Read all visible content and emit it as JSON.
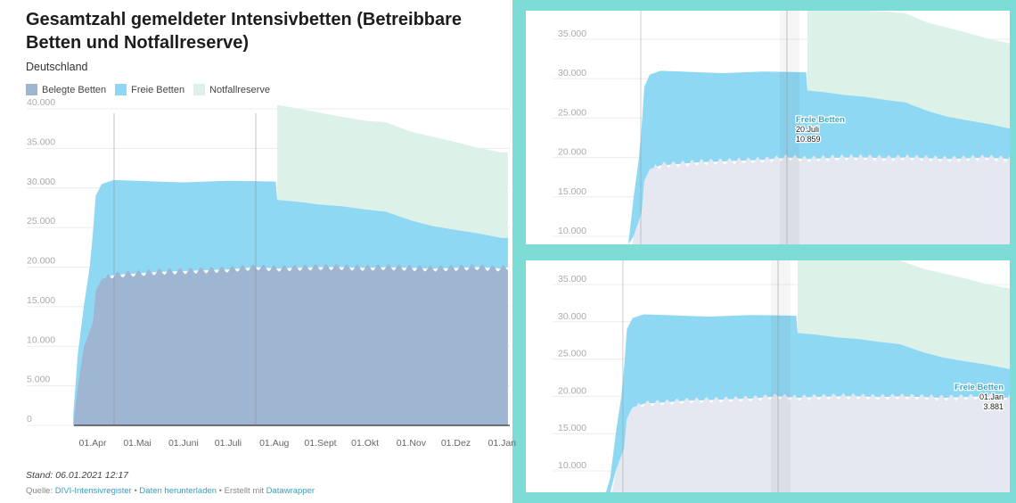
{
  "title": "Gesamtzahl gemeldeter Intensivbetten (Betreibbare Betten und Notfallreserve)",
  "subtitle": "Deutschland",
  "legend": [
    {
      "label": "Belegte Betten",
      "color": "#9fb6d2"
    },
    {
      "label": "Freie Betten",
      "color": "#8fd8f3"
    },
    {
      "label": "Notfallreserve",
      "color": "#dcf1e8"
    }
  ],
  "footer": {
    "stand": "Stand: 06.01.2021 12:17",
    "source_prefix": "Quelle: ",
    "source_link": "DIVI-Intensivregister",
    "sep1": " • ",
    "download_link": "Daten herunterladen",
    "made_with": " • Erstellt mit ",
    "datawrapper_link": "Datawrapper"
  },
  "colors": {
    "belegt": "#9fb6d2",
    "frei": "#8fd8f3",
    "notfall": "#dcf1e8",
    "belegt_faded": "#e5e8f1",
    "frame": "#7ddcd5"
  },
  "chart_data": [
    {
      "type": "area",
      "stacked": true,
      "title": "Gesamtzahl gemeldeter Intensivbetten (Betreibbare Betten und Notfallreserve)",
      "x": [
        "2020-03-19",
        "2020-03-22",
        "2020-03-26",
        "2020-03-30",
        "2020-04-01",
        "2020-04-03",
        "2020-04-07",
        "2020-04-15",
        "2020-05-01",
        "2020-05-15",
        "2020-06-01",
        "2020-06-15",
        "2020-07-01",
        "2020-07-20",
        "2020-08-02",
        "2020-08-03",
        "2020-08-15",
        "2020-09-01",
        "2020-09-15",
        "2020-10-01",
        "2020-10-15",
        "2020-11-01",
        "2020-11-15",
        "2020-12-01",
        "2020-12-15",
        "2021-01-01",
        "2021-01-05"
      ],
      "series": [
        {
          "name": "Belegte Betten",
          "values": [
            500,
            5000,
            10000,
            12000,
            13000,
            17000,
            18500,
            19000,
            19200,
            19400,
            19500,
            19600,
            19700,
            20000,
            19800,
            19800,
            19900,
            20000,
            20000,
            19900,
            20000,
            19900,
            19800,
            19900,
            20000,
            19800,
            20000
          ]
        },
        {
          "name": "Freie Betten",
          "values": [
            1000,
            4000,
            5000,
            8000,
            11000,
            12000,
            12000,
            12000,
            11700,
            11400,
            11200,
            11200,
            11200,
            10859,
            11000,
            8700,
            8400,
            7900,
            7700,
            7400,
            7000,
            6000,
            5400,
            4800,
            4300,
            3881,
            3700
          ]
        },
        {
          "name": "Notfallreserve",
          "values": [
            null,
            null,
            null,
            null,
            null,
            null,
            null,
            null,
            null,
            null,
            null,
            null,
            null,
            null,
            null,
            12000,
            11800,
            11600,
            11300,
            11200,
            11300,
            11200,
            11300,
            11100,
            10800,
            10800,
            10800
          ]
        }
      ],
      "ylim": [
        0,
        40000
      ],
      "yticks": [
        "0",
        "5.000",
        "10.000",
        "15.000",
        "20.000",
        "25.000",
        "30.000",
        "35.000",
        "40.000"
      ],
      "xticks": [
        "01.Apr",
        "01.Mai",
        "01.Juni",
        "01.Juli",
        "01.Aug",
        "01.Sept",
        "01.Okt",
        "01.Nov",
        "01.Dez",
        "01.Jan"
      ],
      "grid": true
    },
    {
      "type": "area",
      "view": "zoomed detail with tooltip",
      "ylim": [
        10000,
        35000
      ],
      "yticks": [
        "10.000",
        "15.000",
        "20.000",
        "25.000",
        "30.000",
        "35.000"
      ],
      "tooltip": {
        "series": "Freie Betten",
        "date": "20.Juli",
        "value": "10.859"
      }
    },
    {
      "type": "area",
      "view": "zoomed detail with tooltip",
      "ylim": [
        10000,
        35000
      ],
      "yticks": [
        "10.000",
        "15.000",
        "20.000",
        "25.000",
        "30.000",
        "35.000"
      ],
      "tooltip": {
        "series": "Freie Betten",
        "date": "01.Jan",
        "value": "3.881"
      }
    }
  ]
}
